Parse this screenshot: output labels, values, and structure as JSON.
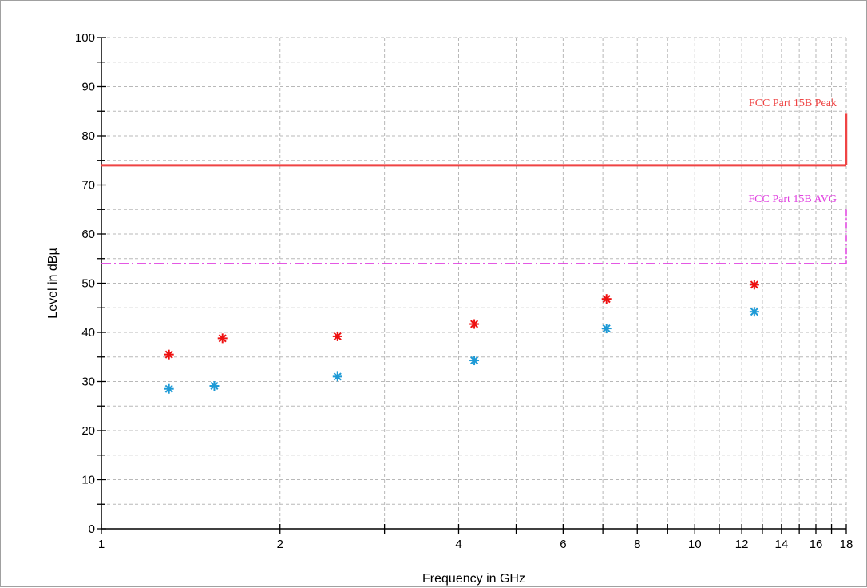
{
  "chart_data": {
    "type": "scatter",
    "xlabel": "Frequency in GHz",
    "ylabel": "Level in dBµ",
    "xlim": [
      1,
      18
    ],
    "ylim": [
      0,
      100
    ],
    "x_ticks": [
      1,
      2,
      4,
      6,
      8,
      10,
      12,
      14,
      16,
      18
    ],
    "y_ticks": [
      0,
      10,
      20,
      30,
      40,
      50,
      60,
      70,
      80,
      90,
      100
    ],
    "grid": true,
    "limit_lines": [
      {
        "name": "FCC Part 15B Peak",
        "value": 74,
        "color": "#ef4444",
        "style": "solid"
      },
      {
        "name": "FCC Part 15B AVG",
        "value": 54,
        "color": "#e040e0",
        "style": "dash-dot"
      }
    ],
    "series": [
      {
        "color": "#ee1111",
        "marker": "asterisk",
        "points": [
          [
            1.3,
            35.5
          ],
          [
            1.6,
            38.8
          ],
          [
            2.5,
            39.2
          ],
          [
            4.25,
            41.7
          ],
          [
            7.1,
            46.8
          ],
          [
            12.6,
            49.7
          ]
        ]
      },
      {
        "color": "#1e9ad6",
        "marker": "asterisk",
        "points": [
          [
            1.3,
            28.5
          ],
          [
            1.55,
            29.1
          ],
          [
            2.5,
            31.0
          ],
          [
            4.25,
            34.3
          ],
          [
            7.1,
            40.8
          ],
          [
            12.6,
            44.2
          ]
        ]
      }
    ]
  }
}
